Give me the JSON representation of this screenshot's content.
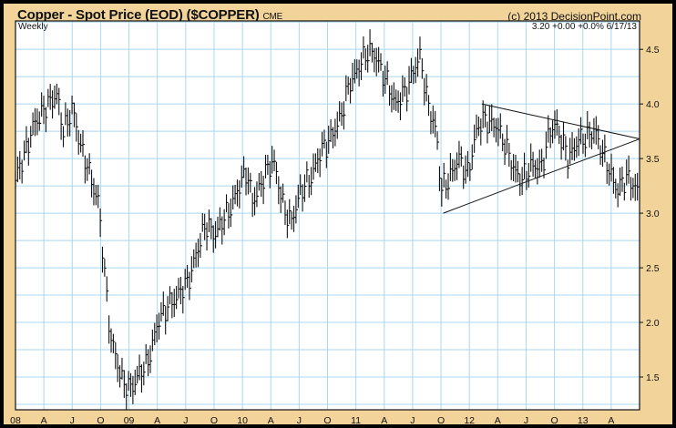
{
  "header": {
    "title": "Copper - Spot Price (EOD) ($COPPER)",
    "exchange": "CME",
    "copyright": "(c) 2013 DecisionPoint.com"
  },
  "chart_data": {
    "type": "ohlc",
    "title": "Copper - Spot Price (EOD) ($COPPER)",
    "period_label": "Weekly",
    "last_quote": "3.20  +0.00  +0.0%  6/17/13",
    "ylim": [
      1.2,
      4.76
    ],
    "xlim": [
      2008.0,
      2013.5
    ],
    "yticks": [
      {
        "v": 1.5,
        "label": "1.5"
      },
      {
        "v": 2.0,
        "label": "2.0"
      },
      {
        "v": 2.5,
        "label": "2.5"
      },
      {
        "v": 3.0,
        "label": "3.0"
      },
      {
        "v": 3.5,
        "label": "3.5"
      },
      {
        "v": 4.0,
        "label": "4.0"
      },
      {
        "v": 4.5,
        "label": "4.5"
      }
    ],
    "xticks": [
      {
        "v": 2008.0,
        "label": "08"
      },
      {
        "v": 2008.25,
        "label": "A"
      },
      {
        "v": 2008.5,
        "label": "J"
      },
      {
        "v": 2008.75,
        "label": "O"
      },
      {
        "v": 2009.0,
        "label": "09"
      },
      {
        "v": 2009.25,
        "label": "A"
      },
      {
        "v": 2009.5,
        "label": "J"
      },
      {
        "v": 2009.75,
        "label": "O"
      },
      {
        "v": 2010.0,
        "label": "10"
      },
      {
        "v": 2010.25,
        "label": "A"
      },
      {
        "v": 2010.5,
        "label": "J"
      },
      {
        "v": 2010.75,
        "label": "O"
      },
      {
        "v": 2011.0,
        "label": "11"
      },
      {
        "v": 2011.25,
        "label": "A"
      },
      {
        "v": 2011.5,
        "label": "J"
      },
      {
        "v": 2011.75,
        "label": "O"
      },
      {
        "v": 2012.0,
        "label": "12"
      },
      {
        "v": 2012.25,
        "label": "A"
      },
      {
        "v": 2012.5,
        "label": "J"
      },
      {
        "v": 2012.75,
        "label": "O"
      },
      {
        "v": 2013.0,
        "label": "13"
      },
      {
        "v": 2013.25,
        "label": "A"
      }
    ],
    "grid": true,
    "price_path": [
      [
        2008.0,
        3.3
      ],
      [
        2008.18,
        3.85
      ],
      [
        2008.26,
        3.95
      ],
      [
        2008.36,
        4.1
      ],
      [
        2008.42,
        3.75
      ],
      [
        2008.5,
        3.95
      ],
      [
        2008.58,
        3.6
      ],
      [
        2008.67,
        3.3
      ],
      [
        2008.73,
        3.1
      ],
      [
        2008.79,
        2.4
      ],
      [
        2008.84,
        1.85
      ],
      [
        2008.89,
        1.65
      ],
      [
        2008.95,
        1.45
      ],
      [
        2009.01,
        1.38
      ],
      [
        2009.07,
        1.5
      ],
      [
        2009.15,
        1.6
      ],
      [
        2009.21,
        1.8
      ],
      [
        2009.27,
        2.05
      ],
      [
        2009.39,
        2.2
      ],
      [
        2009.51,
        2.35
      ],
      [
        2009.59,
        2.6
      ],
      [
        2009.67,
        2.9
      ],
      [
        2009.75,
        2.8
      ],
      [
        2009.87,
        3.0
      ],
      [
        2009.96,
        3.2
      ],
      [
        2010.03,
        3.4
      ],
      [
        2010.09,
        3.1
      ],
      [
        2010.27,
        3.5
      ],
      [
        2010.35,
        3.1
      ],
      [
        2010.43,
        2.9
      ],
      [
        2010.51,
        3.2
      ],
      [
        2010.59,
        3.3
      ],
      [
        2010.71,
        3.6
      ],
      [
        2010.79,
        3.7
      ],
      [
        2010.87,
        3.9
      ],
      [
        2010.95,
        4.2
      ],
      [
        2011.01,
        4.3
      ],
      [
        2011.11,
        4.5
      ],
      [
        2011.19,
        4.4
      ],
      [
        2011.27,
        4.2
      ],
      [
        2011.35,
        4.0
      ],
      [
        2011.43,
        4.1
      ],
      [
        2011.51,
        4.3
      ],
      [
        2011.57,
        4.45
      ],
      [
        2011.63,
        4.0
      ],
      [
        2011.71,
        3.75
      ],
      [
        2011.75,
        3.2
      ],
      [
        2011.81,
        3.3
      ],
      [
        2011.91,
        3.5
      ],
      [
        2011.99,
        3.35
      ],
      [
        2012.07,
        3.8
      ],
      [
        2012.15,
        3.85
      ],
      [
        2012.23,
        3.8
      ],
      [
        2012.31,
        3.65
      ],
      [
        2012.39,
        3.4
      ],
      [
        2012.47,
        3.3
      ],
      [
        2012.55,
        3.45
      ],
      [
        2012.63,
        3.4
      ],
      [
        2012.71,
        3.75
      ],
      [
        2012.77,
        3.8
      ],
      [
        2012.87,
        3.5
      ],
      [
        2012.95,
        3.65
      ],
      [
        2013.03,
        3.7
      ],
      [
        2013.11,
        3.75
      ],
      [
        2013.19,
        3.5
      ],
      [
        2013.31,
        3.2
      ],
      [
        2013.39,
        3.35
      ],
      [
        2013.47,
        3.2
      ]
    ],
    "trendlines": [
      {
        "name": "triangle-upper",
        "from": [
          2012.11,
          4.0
        ],
        "to": [
          2013.5,
          3.68
        ]
      },
      {
        "name": "triangle-lower",
        "from": [
          2011.77,
          3.0
        ],
        "to": [
          2013.5,
          3.68
        ]
      }
    ],
    "colors": {
      "background": "#F2D49A",
      "plot": "#FFFFFF",
      "grid": "#A8D8F0",
      "bars": "#111111"
    }
  }
}
